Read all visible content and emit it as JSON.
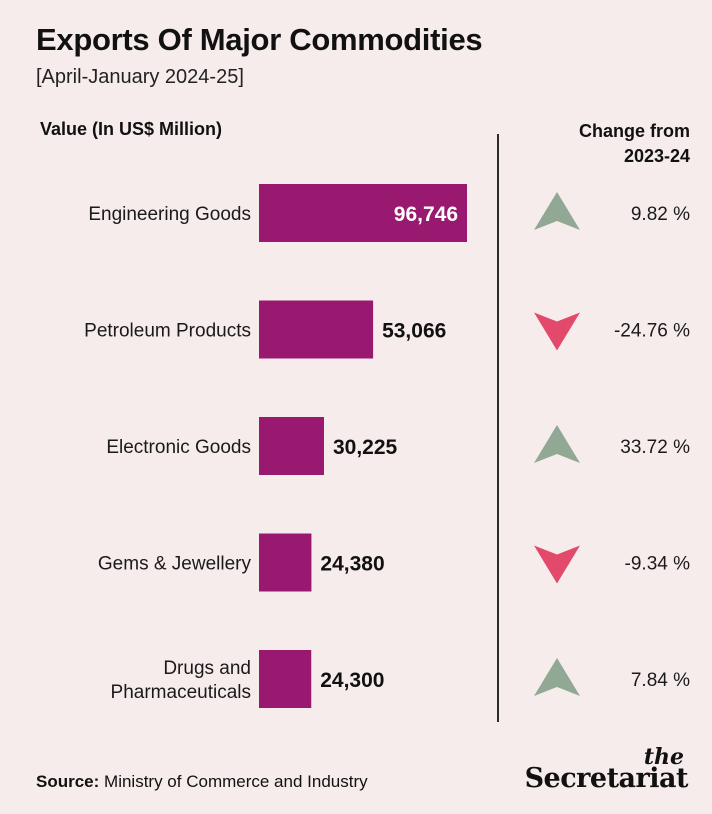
{
  "header": {
    "title": "Exports Of Major Commodities",
    "subtitle": "[April-January 2024-25]",
    "value_label": "Value (In US$ Million)",
    "change_label_line1": "Change from",
    "change_label_line2": "2023-24"
  },
  "chart_data": {
    "type": "bar",
    "orientation": "horizontal",
    "unit": "US$ Million",
    "categories": [
      [
        "Engineering Goods"
      ],
      [
        "Petroleum Products"
      ],
      [
        "Electronic Goods"
      ],
      [
        "Gems & Jewellery"
      ],
      [
        "Drugs and",
        "Pharmaceuticals"
      ]
    ],
    "values": [
      96746,
      53066,
      30225,
      24380,
      24300
    ],
    "value_labels": [
      "96,746",
      "53,066",
      "30,225",
      "24,380",
      "24,300"
    ],
    "change": {
      "values": [
        9.82,
        -24.76,
        33.72,
        -9.34,
        7.84
      ],
      "labels": [
        "9.82 %",
        "-24.76 %",
        "33.72 %",
        "-9.34 %",
        "7.84 %"
      ],
      "direction": [
        "up",
        "down",
        "up",
        "down",
        "up"
      ]
    },
    "colors": {
      "bar": "#98196f",
      "up_arrow": "#91a894",
      "down_arrow": "#e2496b",
      "label_inside": "#ffffff",
      "label_outside": "#111111"
    }
  },
  "footer": {
    "source_label": "Source:",
    "source_text": "Ministry of Commerce and Industry",
    "logo_the": "the",
    "logo_brand": "Secretariat"
  }
}
